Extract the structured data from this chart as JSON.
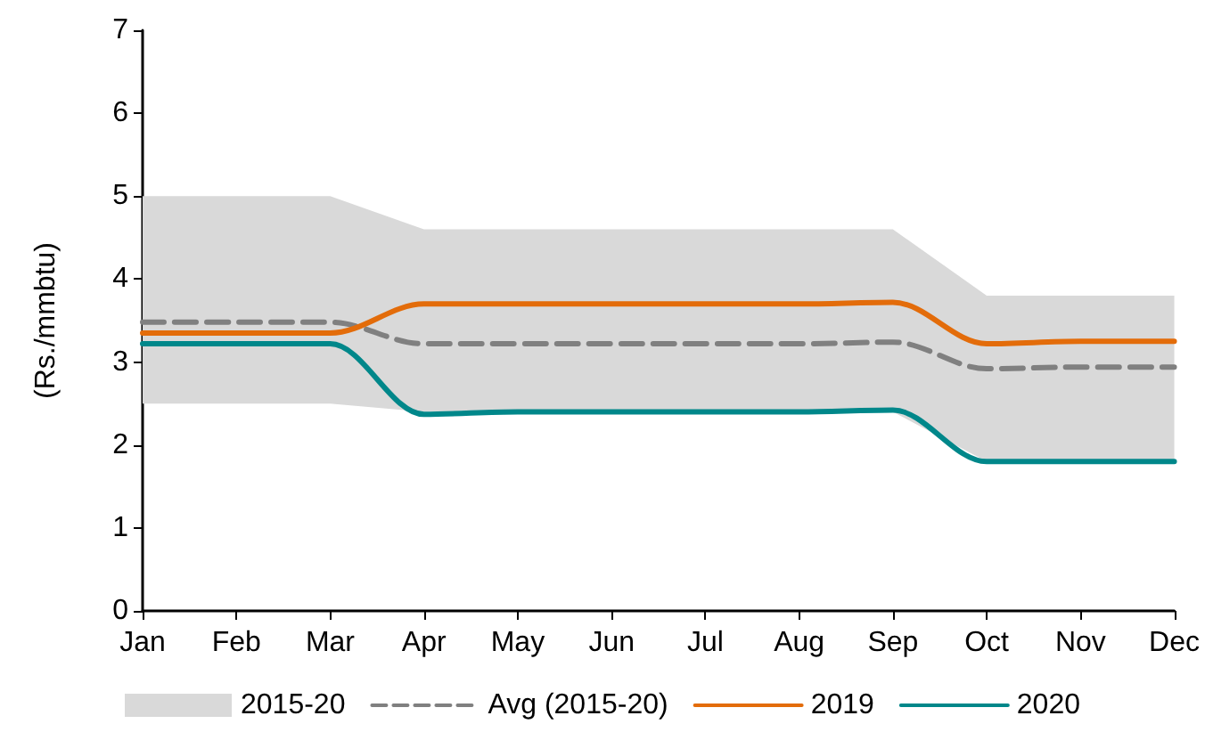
{
  "chart_data": {
    "type": "line",
    "ylabel": "(Rs./mmbtu)",
    "categories": [
      "Jan",
      "Feb",
      "Mar",
      "Apr",
      "May",
      "Jun",
      "Jul",
      "Aug",
      "Sep",
      "Oct",
      "Nov",
      "Dec"
    ],
    "series": [
      {
        "name": "2015-20",
        "type": "area",
        "color": "#d9d9d9",
        "values": [
          null,
          null,
          null,
          null,
          null,
          null,
          null,
          null,
          null,
          null,
          null,
          null
        ]
      },
      {
        "name": "Avg (2015-20)",
        "color": "#808080",
        "line_style": "dashed",
        "values": [
          3.48,
          3.48,
          3.48,
          3.22,
          3.22,
          3.22,
          3.22,
          3.22,
          3.24,
          2.92,
          2.94,
          2.94
        ],
        "lower": [
          2.5,
          2.5,
          2.5,
          2.4,
          2.4,
          2.4,
          2.4,
          2.4,
          2.4,
          1.8,
          1.8,
          1.8
        ],
        "upper": [
          5.0,
          5.0,
          5.0,
          4.6,
          4.6,
          4.6,
          4.6,
          4.6,
          4.6,
          3.8,
          3.8,
          3.8
        ]
      },
      {
        "name": "2019",
        "color": "#e36c0a",
        "values": [
          3.35,
          3.35,
          3.35,
          3.7,
          3.7,
          3.7,
          3.7,
          3.7,
          3.72,
          3.22,
          3.25,
          3.25
        ]
      },
      {
        "name": "2020",
        "color": "#00878a",
        "values": [
          3.22,
          3.22,
          3.22,
          2.37,
          2.4,
          2.4,
          2.4,
          2.4,
          2.42,
          1.8,
          1.8,
          1.8
        ]
      }
    ],
    "ylim": [
      0,
      7
    ],
    "yticks": [
      0,
      1,
      2,
      3,
      4,
      5,
      6,
      7
    ],
    "grid": false,
    "legend": "bottom",
    "marker": "none",
    "line_style": "solid"
  }
}
